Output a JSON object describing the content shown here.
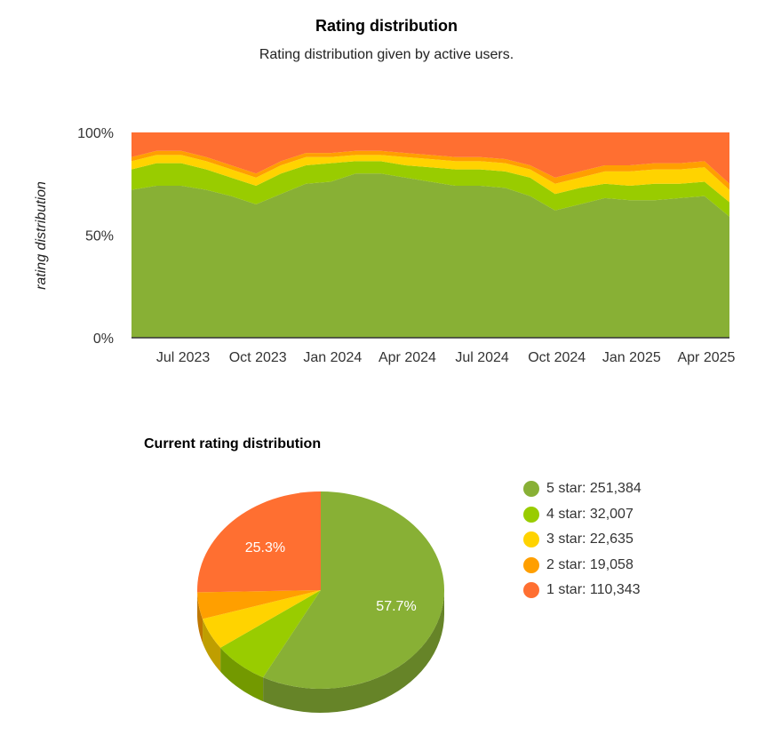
{
  "title": "Rating distribution",
  "subtitle": "Rating distribution given by active users.",
  "colors": {
    "s5": "#88b035",
    "s4": "#99cc00",
    "s3": "#ffd300",
    "s2": "#ff9f00",
    "s1": "#ff6f31"
  },
  "chart_data": [
    {
      "type": "area",
      "stacked": "percent",
      "ylabel": "rating distribution",
      "ylim": [
        0,
        100
      ],
      "yticks": [
        "0%",
        "50%",
        "100%"
      ],
      "xticks": [
        "Jul 2023",
        "Oct 2023",
        "Jan 2024",
        "Apr 2024",
        "Jul 2024",
        "Oct 2024",
        "Jan 2025",
        "Apr 2025"
      ],
      "x": [
        "2023-05",
        "2023-06",
        "2023-07",
        "2023-08",
        "2023-09",
        "2023-10",
        "2023-11",
        "2023-12",
        "2024-01",
        "2024-02",
        "2024-03",
        "2024-04",
        "2024-05",
        "2024-06",
        "2024-07",
        "2024-08",
        "2024-09",
        "2024-10",
        "2024-11",
        "2024-12",
        "2025-01",
        "2025-02",
        "2025-03",
        "2025-04",
        "2025-05"
      ],
      "series": [
        {
          "name": "5 star",
          "values": [
            72,
            74,
            74,
            72,
            69,
            65,
            70,
            75,
            76,
            80,
            80,
            78,
            76,
            74,
            74,
            73,
            69,
            62,
            65,
            68,
            67,
            67,
            68,
            69,
            59
          ]
        },
        {
          "name": "4 star",
          "values": [
            10,
            11,
            11,
            10,
            9,
            9,
            10,
            9,
            9,
            6,
            6,
            6,
            7,
            8,
            8,
            8,
            9,
            8,
            8,
            7,
            7,
            8,
            7,
            7,
            7
          ]
        },
        {
          "name": "3 star",
          "values": [
            4,
            4,
            4,
            4,
            4,
            4,
            4,
            4,
            3,
            3,
            3,
            4,
            4,
            4,
            4,
            4,
            4,
            5,
            5,
            6,
            7,
            7,
            7,
            7,
            6
          ]
        },
        {
          "name": "2 star",
          "values": [
            2,
            2,
            2,
            2,
            2,
            2,
            2,
            2,
            2,
            2,
            2,
            2,
            2,
            2,
            2,
            2,
            2,
            3,
            3,
            3,
            3,
            3,
            3,
            3,
            3
          ]
        },
        {
          "name": "1 star",
          "values": [
            12,
            9,
            9,
            12,
            16,
            20,
            14,
            10,
            10,
            9,
            9,
            10,
            11,
            12,
            12,
            13,
            16,
            22,
            19,
            16,
            16,
            15,
            15,
            14,
            25
          ]
        }
      ]
    },
    {
      "type": "pie",
      "title": "Current rating distribution",
      "slices": [
        {
          "name": "5 star",
          "value": 251384,
          "label": "5 star: 251,384",
          "percent_label": "57.7%"
        },
        {
          "name": "4 star",
          "value": 32007,
          "label": "4 star: 32,007"
        },
        {
          "name": "3 star",
          "value": 22635,
          "label": "3 star: 22,635"
        },
        {
          "name": "2 star",
          "value": 19058,
          "label": "2 star: 19,058"
        },
        {
          "name": "1 star",
          "value": 110343,
          "label": "1 star: 110,343",
          "percent_label": "25.3%"
        }
      ]
    }
  ]
}
